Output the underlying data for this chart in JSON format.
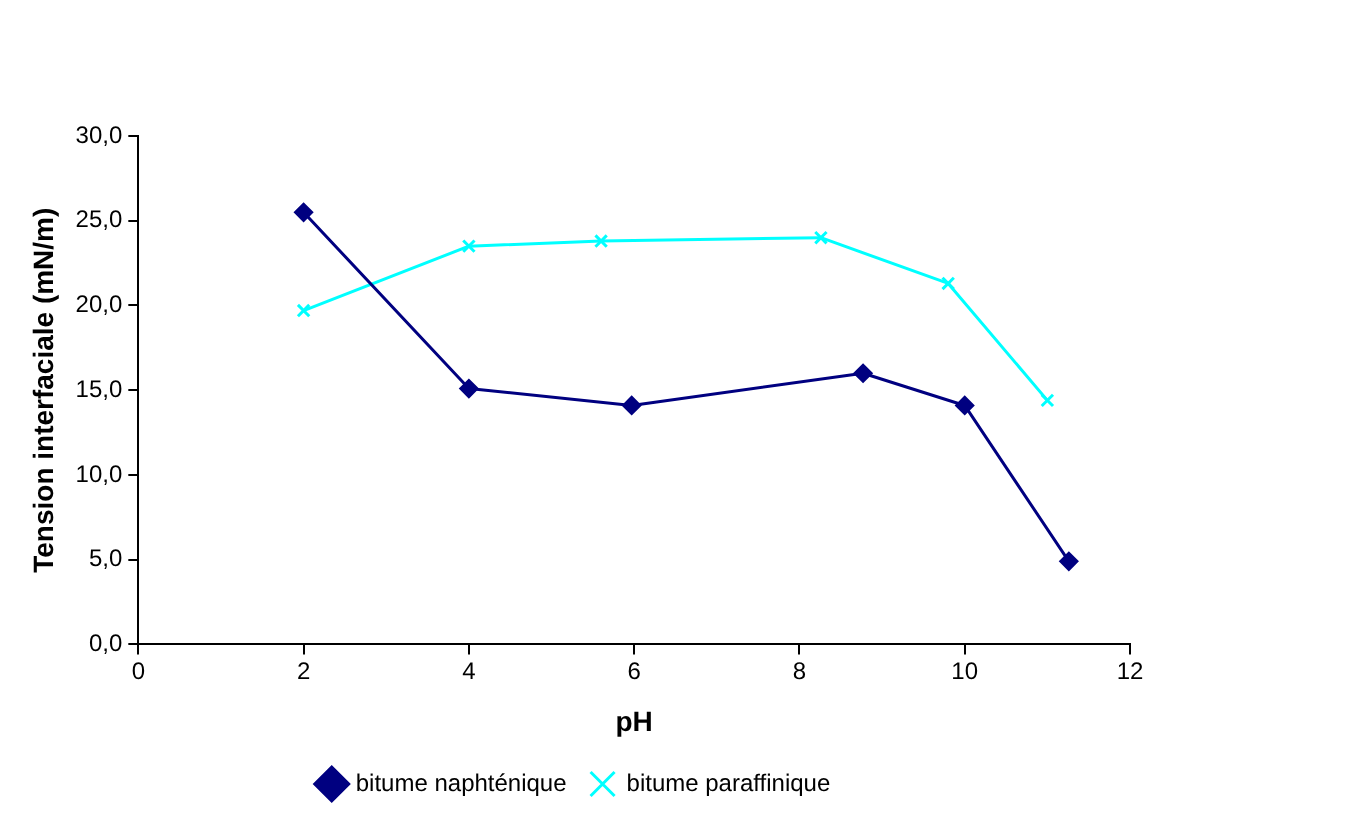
{
  "chart_data": {
    "type": "line",
    "xlabel": "pH",
    "ylabel": "Tension interfaciale (mN/m)",
    "series": [
      {
        "name": "bitume naphténique",
        "color": "#000080",
        "marker": "diamond",
        "x": [
          2,
          4,
          5.97,
          8.77,
          10,
          11.26
        ],
        "values": [
          25.5,
          15.1,
          14.1,
          16.0,
          14.1,
          4.9
        ]
      },
      {
        "name": "bitume paraffinique",
        "color": "#00ffff",
        "marker": "cross",
        "x": [
          2,
          4,
          5.6,
          8.26,
          9.8,
          11.0
        ],
        "values": [
          19.7,
          23.5,
          23.8,
          24.0,
          21.3,
          14.4
        ]
      }
    ],
    "xlim": [
      0,
      12
    ],
    "xticks": [
      0,
      2,
      4,
      6,
      8,
      10,
      12
    ],
    "ylim": [
      0,
      30
    ],
    "yticks": [
      {
        "value": 0,
        "label": "0,0"
      },
      {
        "value": 5,
        "label": "5,0"
      },
      {
        "value": 10,
        "label": "10,0"
      },
      {
        "value": 15,
        "label": "15,0"
      },
      {
        "value": 20,
        "label": "20,0"
      },
      {
        "value": 25,
        "label": "25,0"
      },
      {
        "value": 30,
        "label": "30,0"
      }
    ],
    "grid": false,
    "legend": "bottom",
    "line_style": "solid"
  }
}
